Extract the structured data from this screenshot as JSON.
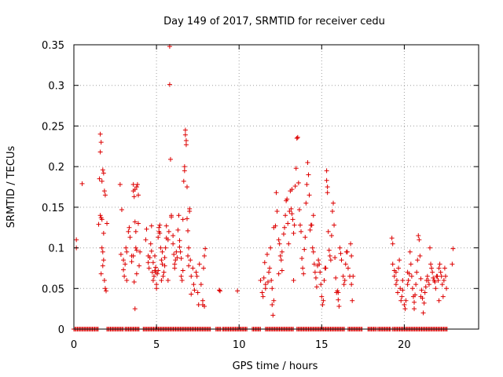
{
  "chart_data": {
    "type": "scatter",
    "title": "Day 149 of 2017, SRMTID for receiver cedu",
    "xlabel": "GPS time / hours",
    "ylabel": "SRMTID / TECUs",
    "xlim": [
      0,
      24.5
    ],
    "ylim": [
      0,
      0.35
    ],
    "grid": true,
    "marker": "+",
    "color": "#dd0000",
    "x_ticks": [
      0,
      5,
      10,
      15,
      20
    ],
    "x_tick_labels": [
      "0",
      "5",
      "10",
      "15",
      "20"
    ],
    "y_ticks": [
      0,
      0.05,
      0.1,
      0.15,
      0.2,
      0.25,
      0.3,
      0.35
    ],
    "y_tick_labels": [
      "0",
      "0.05",
      "0.1",
      "0.15",
      "0.2",
      "0.25",
      "0.3",
      "0.35"
    ],
    "zero_runs": [
      [
        0.0,
        1.5
      ],
      [
        2.0,
        3.0
      ],
      [
        3.1,
        4.0
      ],
      [
        4.2,
        8.3
      ],
      [
        8.6,
        8.9
      ],
      [
        9.0,
        10.5
      ],
      [
        10.8,
        11.3
      ],
      [
        11.6,
        13.3
      ],
      [
        13.5,
        16.4
      ],
      [
        16.6,
        17.5
      ],
      [
        17.8,
        18.3
      ],
      [
        18.4,
        19.2
      ],
      [
        19.3,
        22.6
      ]
    ],
    "points": [
      [
        0.15,
        0.11
      ],
      [
        0.15,
        0.1
      ],
      [
        0.5,
        0.179
      ],
      [
        1.5,
        0.129
      ],
      [
        1.55,
        0.185
      ],
      [
        1.6,
        0.24
      ],
      [
        1.65,
        0.23
      ],
      [
        1.6,
        0.218
      ],
      [
        1.7,
        0.182
      ],
      [
        1.65,
        0.137
      ],
      [
        1.7,
        0.135
      ],
      [
        1.75,
        0.196
      ],
      [
        1.8,
        0.192
      ],
      [
        1.7,
        0.1
      ],
      [
        1.75,
        0.095
      ],
      [
        1.8,
        0.085
      ],
      [
        1.65,
        0.068
      ],
      [
        1.75,
        0.078
      ],
      [
        1.8,
        0.118
      ],
      [
        1.85,
        0.17
      ],
      [
        1.9,
        0.165
      ],
      [
        1.9,
        0.05
      ],
      [
        1.95,
        0.047
      ],
      [
        2.0,
        0.13
      ],
      [
        1.6,
        0.14
      ],
      [
        1.85,
        0.06
      ],
      [
        2.8,
        0.178
      ],
      [
        2.9,
        0.147
      ],
      [
        2.85,
        0.092
      ],
      [
        3.0,
        0.085
      ],
      [
        3.0,
        0.073
      ],
      [
        3.05,
        0.065
      ],
      [
        3.1,
        0.08
      ],
      [
        3.15,
        0.1
      ],
      [
        3.2,
        0.095
      ],
      [
        3.3,
        0.12
      ],
      [
        3.35,
        0.125
      ],
      [
        3.4,
        0.113
      ],
      [
        3.2,
        0.06
      ],
      [
        3.5,
        0.09
      ],
      [
        3.5,
        0.083
      ],
      [
        3.6,
        0.09
      ],
      [
        3.6,
        0.178
      ],
      [
        3.6,
        0.17
      ],
      [
        3.65,
        0.163
      ],
      [
        3.7,
        0.172
      ],
      [
        3.7,
        0.132
      ],
      [
        3.75,
        0.1
      ],
      [
        3.8,
        0.097
      ],
      [
        3.8,
        0.175
      ],
      [
        3.85,
        0.178
      ],
      [
        3.9,
        0.165
      ],
      [
        3.65,
        0.058
      ],
      [
        3.7,
        0.025
      ],
      [
        3.8,
        0.068
      ],
      [
        3.9,
        0.13
      ],
      [
        4.0,
        0.095
      ],
      [
        3.95,
        0.078
      ],
      [
        3.75,
        0.12
      ],
      [
        4.35,
        0.11
      ],
      [
        4.4,
        0.123
      ],
      [
        4.5,
        0.09
      ],
      [
        4.5,
        0.082
      ],
      [
        4.55,
        0.075
      ],
      [
        4.6,
        0.088
      ],
      [
        4.65,
        0.105
      ],
      [
        4.7,
        0.127
      ],
      [
        4.7,
        0.096
      ],
      [
        4.75,
        0.07
      ],
      [
        4.8,
        0.06
      ],
      [
        4.8,
        0.082
      ],
      [
        4.85,
        0.065
      ],
      [
        4.9,
        0.072
      ],
      [
        4.9,
        0.09
      ],
      [
        4.95,
        0.076
      ],
      [
        5.0,
        0.055
      ],
      [
        5.0,
        0.05
      ],
      [
        5.05,
        0.068
      ],
      [
        5.1,
        0.072
      ],
      [
        5.1,
        0.113
      ],
      [
        5.15,
        0.12
      ],
      [
        5.15,
        0.125
      ],
      [
        5.2,
        0.128
      ],
      [
        5.2,
        0.118
      ],
      [
        5.25,
        0.1
      ],
      [
        5.3,
        0.085
      ],
      [
        5.35,
        0.095
      ],
      [
        5.35,
        0.08
      ],
      [
        5.4,
        0.065
      ],
      [
        5.45,
        0.07
      ],
      [
        5.5,
        0.078
      ],
      [
        5.5,
        0.088
      ],
      [
        5.55,
        0.1
      ],
      [
        5.6,
        0.127
      ],
      [
        5.6,
        0.112
      ],
      [
        5.7,
        0.11
      ],
      [
        5.7,
        0.06
      ],
      [
        5.75,
        0.12
      ],
      [
        5.8,
        0.348
      ],
      [
        5.8,
        0.301
      ],
      [
        5.85,
        0.209
      ],
      [
        5.9,
        0.138
      ],
      [
        5.9,
        0.14
      ],
      [
        6.0,
        0.115
      ],
      [
        6.0,
        0.105
      ],
      [
        6.05,
        0.092
      ],
      [
        6.1,
        0.08
      ],
      [
        6.1,
        0.075
      ],
      [
        6.15,
        0.085
      ],
      [
        6.2,
        0.095
      ],
      [
        6.25,
        0.088
      ],
      [
        6.3,
        0.122
      ],
      [
        6.35,
        0.14
      ],
      [
        6.4,
        0.109
      ],
      [
        6.4,
        0.101
      ],
      [
        6.45,
        0.095
      ],
      [
        6.5,
        0.087
      ],
      [
        6.5,
        0.065
      ],
      [
        6.55,
        0.06
      ],
      [
        6.6,
        0.072
      ],
      [
        6.6,
        0.135
      ],
      [
        6.65,
        0.182
      ],
      [
        6.7,
        0.195
      ],
      [
        6.7,
        0.2
      ],
      [
        6.75,
        0.245
      ],
      [
        6.75,
        0.239
      ],
      [
        6.8,
        0.232
      ],
      [
        6.8,
        0.227
      ],
      [
        6.85,
        0.175
      ],
      [
        6.85,
        0.136
      ],
      [
        6.9,
        0.121
      ],
      [
        6.95,
        0.1
      ],
      [
        6.9,
        0.09
      ],
      [
        6.95,
        0.078
      ],
      [
        7.0,
        0.148
      ],
      [
        7.0,
        0.145
      ],
      [
        7.05,
        0.085
      ],
      [
        7.1,
        0.065
      ],
      [
        7.1,
        0.043
      ],
      [
        7.2,
        0.075
      ],
      [
        7.25,
        0.055
      ],
      [
        7.3,
        0.048
      ],
      [
        7.4,
        0.07
      ],
      [
        7.45,
        0.065
      ],
      [
        7.5,
        0.045
      ],
      [
        7.55,
        0.03
      ],
      [
        7.6,
        0.08
      ],
      [
        7.7,
        0.055
      ],
      [
        7.8,
        0.035
      ],
      [
        7.8,
        0.03
      ],
      [
        7.9,
        0.028
      ],
      [
        7.85,
        0.075
      ],
      [
        7.95,
        0.099
      ],
      [
        7.9,
        0.09
      ],
      [
        5.3,
        0.06
      ],
      [
        4.95,
        0.07
      ],
      [
        8.8,
        0.048
      ],
      [
        8.85,
        0.047
      ],
      [
        9.9,
        0.047
      ],
      [
        11.3,
        0.06
      ],
      [
        11.4,
        0.045
      ],
      [
        11.45,
        0.04
      ],
      [
        11.5,
        0.063
      ],
      [
        11.55,
        0.082
      ],
      [
        11.6,
        0.055
      ],
      [
        11.7,
        0.092
      ],
      [
        11.75,
        0.058
      ],
      [
        11.8,
        0.07
      ],
      [
        11.85,
        0.075
      ],
      [
        11.9,
        0.1
      ],
      [
        11.95,
        0.06
      ],
      [
        12.0,
        0.05
      ],
      [
        12.0,
        0.03
      ],
      [
        12.05,
        0.017
      ],
      [
        12.1,
        0.035
      ],
      [
        12.1,
        0.125
      ],
      [
        12.2,
        0.127
      ],
      [
        12.25,
        0.168
      ],
      [
        12.3,
        0.145
      ],
      [
        12.4,
        0.11
      ],
      [
        12.45,
        0.105
      ],
      [
        12.5,
        0.09
      ],
      [
        12.55,
        0.085
      ],
      [
        12.6,
        0.095
      ],
      [
        12.7,
        0.117
      ],
      [
        12.75,
        0.125
      ],
      [
        12.8,
        0.14
      ],
      [
        12.85,
        0.158
      ],
      [
        12.9,
        0.16
      ],
      [
        12.95,
        0.13
      ],
      [
        13.0,
        0.105
      ],
      [
        13.05,
        0.145
      ],
      [
        13.1,
        0.17
      ],
      [
        13.15,
        0.148
      ],
      [
        13.2,
        0.142
      ],
      [
        13.2,
        0.172
      ],
      [
        13.25,
        0.135
      ],
      [
        13.3,
        0.118
      ],
      [
        13.35,
        0.128
      ],
      [
        13.4,
        0.176
      ],
      [
        13.45,
        0.198
      ],
      [
        13.5,
        0.235
      ],
      [
        13.55,
        0.236
      ],
      [
        13.6,
        0.18
      ],
      [
        13.65,
        0.147
      ],
      [
        13.7,
        0.128
      ],
      [
        13.75,
        0.12
      ],
      [
        13.8,
        0.087
      ],
      [
        13.85,
        0.075
      ],
      [
        13.9,
        0.068
      ],
      [
        13.95,
        0.098
      ],
      [
        14.0,
        0.113
      ],
      [
        14.05,
        0.155
      ],
      [
        14.1,
        0.178
      ],
      [
        14.15,
        0.205
      ],
      [
        14.2,
        0.19
      ],
      [
        14.25,
        0.165
      ],
      [
        14.3,
        0.122
      ],
      [
        14.35,
        0.128
      ],
      [
        14.4,
        0.128
      ],
      [
        14.45,
        0.1
      ],
      [
        14.5,
        0.095
      ],
      [
        14.55,
        0.08
      ],
      [
        14.6,
        0.07
      ],
      [
        14.65,
        0.063
      ],
      [
        14.7,
        0.052
      ],
      [
        14.75,
        0.078
      ],
      [
        14.8,
        0.085
      ],
      [
        14.85,
        0.08
      ],
      [
        14.9,
        0.07
      ],
      [
        14.95,
        0.055
      ],
      [
        15.0,
        0.04
      ],
      [
        15.05,
        0.03
      ],
      [
        15.1,
        0.035
      ],
      [
        15.15,
        0.06
      ],
      [
        15.2,
        0.075
      ],
      [
        15.25,
        0.075
      ],
      [
        15.3,
        0.195
      ],
      [
        15.3,
        0.183
      ],
      [
        15.35,
        0.175
      ],
      [
        15.35,
        0.168
      ],
      [
        15.4,
        0.12
      ],
      [
        15.45,
        0.097
      ],
      [
        15.5,
        0.09
      ],
      [
        15.55,
        0.085
      ],
      [
        15.6,
        0.115
      ],
      [
        15.65,
        0.145
      ],
      [
        15.7,
        0.155
      ],
      [
        15.75,
        0.128
      ],
      [
        15.8,
        0.088
      ],
      [
        15.85,
        0.063
      ],
      [
        15.9,
        0.045
      ],
      [
        15.95,
        0.047
      ],
      [
        16.0,
        0.045
      ],
      [
        16.0,
        0.036
      ],
      [
        16.05,
        0.028
      ],
      [
        16.1,
        0.1
      ],
      [
        16.15,
        0.093
      ],
      [
        16.2,
        0.085
      ],
      [
        16.3,
        0.065
      ],
      [
        16.35,
        0.055
      ],
      [
        16.4,
        0.06
      ],
      [
        16.45,
        0.08
      ],
      [
        16.5,
        0.095
      ],
      [
        16.55,
        0.095
      ],
      [
        16.6,
        0.075
      ],
      [
        16.7,
        0.065
      ],
      [
        16.75,
        0.105
      ],
      [
        16.8,
        0.09
      ],
      [
        16.8,
        0.055
      ],
      [
        16.85,
        0.035
      ],
      [
        16.9,
        0.065
      ],
      [
        12.4,
        0.068
      ],
      [
        12.6,
        0.072
      ],
      [
        14.5,
        0.14
      ],
      [
        13.3,
        0.06
      ],
      [
        11.6,
        0.05
      ],
      [
        19.25,
        0.112
      ],
      [
        19.3,
        0.105
      ],
      [
        19.3,
        0.08
      ],
      [
        19.4,
        0.072
      ],
      [
        19.4,
        0.065
      ],
      [
        19.5,
        0.07
      ],
      [
        19.5,
        0.055
      ],
      [
        19.55,
        0.06
      ],
      [
        19.6,
        0.045
      ],
      [
        19.65,
        0.075
      ],
      [
        19.7,
        0.085
      ],
      [
        19.75,
        0.05
      ],
      [
        19.8,
        0.035
      ],
      [
        19.85,
        0.04
      ],
      [
        19.9,
        0.048
      ],
      [
        20.0,
        0.03
      ],
      [
        20.05,
        0.025
      ],
      [
        20.1,
        0.035
      ],
      [
        20.2,
        0.055
      ],
      [
        20.25,
        0.06
      ],
      [
        20.3,
        0.068
      ],
      [
        20.35,
        0.095
      ],
      [
        20.4,
        0.08
      ],
      [
        20.45,
        0.065
      ],
      [
        20.5,
        0.05
      ],
      [
        20.55,
        0.04
      ],
      [
        20.6,
        0.033
      ],
      [
        20.65,
        0.042
      ],
      [
        20.7,
        0.055
      ],
      [
        20.75,
        0.07
      ],
      [
        20.8,
        0.085
      ],
      [
        20.85,
        0.115
      ],
      [
        20.9,
        0.11
      ],
      [
        20.95,
        0.09
      ],
      [
        21.0,
        0.062
      ],
      [
        21.05,
        0.048
      ],
      [
        21.1,
        0.038
      ],
      [
        21.15,
        0.02
      ],
      [
        21.2,
        0.032
      ],
      [
        21.25,
        0.045
      ],
      [
        21.3,
        0.052
      ],
      [
        21.35,
        0.06
      ],
      [
        21.4,
        0.065
      ],
      [
        21.45,
        0.06
      ],
      [
        21.5,
        0.055
      ],
      [
        21.55,
        0.1
      ],
      [
        21.6,
        0.08
      ],
      [
        21.65,
        0.075
      ],
      [
        21.7,
        0.07
      ],
      [
        21.75,
        0.063
      ],
      [
        21.8,
        0.06
      ],
      [
        21.85,
        0.058
      ],
      [
        21.9,
        0.05
      ],
      [
        21.95,
        0.065
      ],
      [
        22.0,
        0.065
      ],
      [
        22.05,
        0.06
      ],
      [
        22.1,
        0.075
      ],
      [
        22.15,
        0.08
      ],
      [
        22.2,
        0.07
      ],
      [
        22.25,
        0.065
      ],
      [
        22.3,
        0.055
      ],
      [
        22.35,
        0.04
      ],
      [
        22.4,
        0.06
      ],
      [
        22.45,
        0.075
      ],
      [
        22.5,
        0.065
      ],
      [
        22.55,
        0.05
      ],
      [
        22.9,
        0.08
      ],
      [
        22.95,
        0.099
      ],
      [
        20.6,
        0.025
      ],
      [
        21.0,
        0.04
      ],
      [
        22.1,
        0.035
      ],
      [
        20.2,
        0.07
      ],
      [
        19.9,
        0.06
      ]
    ]
  }
}
